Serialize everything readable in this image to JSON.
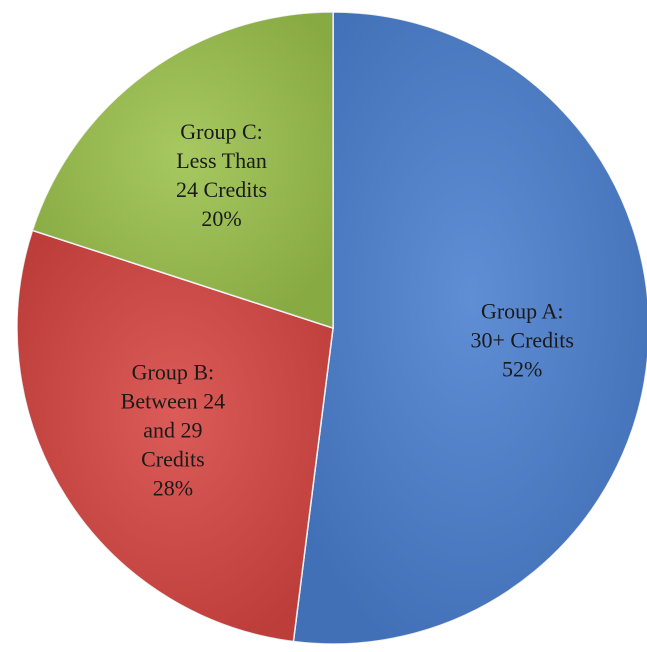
{
  "chart_data": {
    "type": "pie",
    "categories": [
      "Group A: 30+ Credits",
      "Group B: Between 24 and 29 Credits",
      "Group C: Less Than 24 Credits"
    ],
    "values": [
      52,
      28,
      20
    ],
    "value_labels": [
      "52%",
      "28%",
      "20%"
    ],
    "colors": [
      "#4a7fd0",
      "#d64541",
      "#9bc14c"
    ]
  }
}
